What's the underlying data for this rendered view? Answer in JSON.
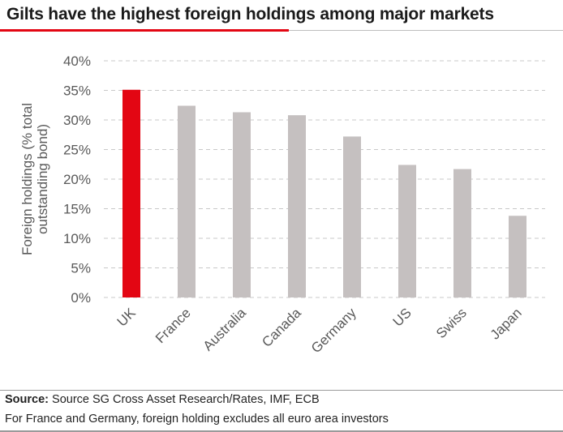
{
  "title": "Gilts have the highest foreign holdings among major markets",
  "colors": {
    "highlight": "#e30613",
    "bar": "#c5c0c0",
    "grid": "#c8c8c8",
    "axis_text": "#595959"
  },
  "chart_data": {
    "type": "bar",
    "title": "Gilts have the highest foreign holdings among major markets",
    "categories": [
      "UK",
      "France",
      "Australia",
      "Canada",
      "Germany",
      "US",
      "Swiss",
      "Japan"
    ],
    "values": [
      35.1,
      32.4,
      31.3,
      30.8,
      27.2,
      22.4,
      21.7,
      13.8
    ],
    "highlight": [
      "UK"
    ],
    "xlabel": "",
    "ylabel_lines": [
      "Foreign holdings (% total",
      "outstanding bond)"
    ],
    "ylim": [
      0,
      40
    ],
    "yticks": [
      "0%",
      "5%",
      "10%",
      "15%",
      "20%",
      "25%",
      "30%",
      "35%",
      "40%"
    ],
    "grid": "dashed-horizontal"
  },
  "footer": {
    "source_label": "Source:",
    "source_text": "Source SG Cross Asset Research/Rates, IMF, ECB",
    "note": "For France and Germany, foreign holding excludes all euro area investors"
  }
}
